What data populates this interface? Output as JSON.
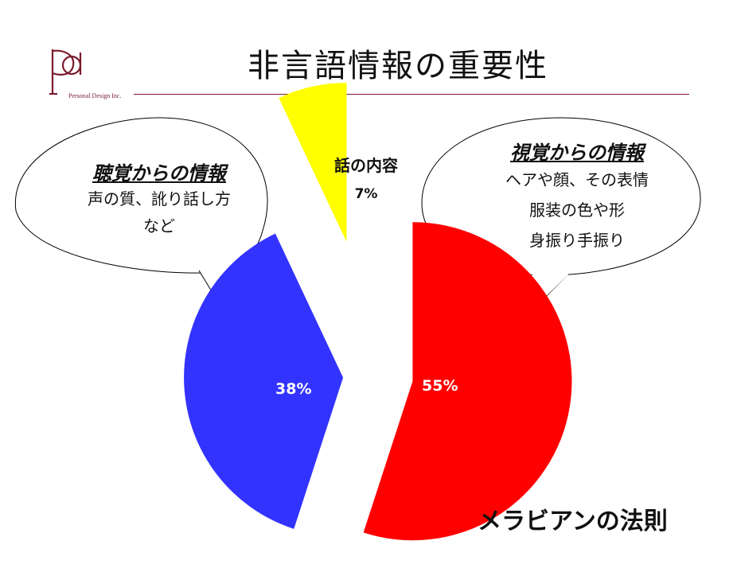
{
  "header": {
    "title": "非言語情報の重要性",
    "logo_text": "Personal Design Inc."
  },
  "left_bubble": {
    "heading": "聴覚からの情報",
    "lines": [
      "声の質、訛り話し方",
      "など"
    ]
  },
  "right_bubble": {
    "heading": "視覚からの情報",
    "lines": [
      "ヘアや顔、その表情",
      "服装の色や形",
      "身振り手振り"
    ]
  },
  "footer": {
    "caption": "メラビアンの法則"
  },
  "colors": {
    "visual": "#ff0000",
    "auditory": "#3333ff",
    "verbal": "#ffff00",
    "brand": "#7a1a2a"
  },
  "chart_data": {
    "type": "pie",
    "categories": [
      "視覚からの情報",
      "聴覚からの情報",
      "話の内容"
    ],
    "values": [
      55,
      38,
      7
    ],
    "labels": [
      "55%",
      "38%",
      "7%"
    ],
    "verbal_label": "話の内容",
    "exploded": true
  }
}
